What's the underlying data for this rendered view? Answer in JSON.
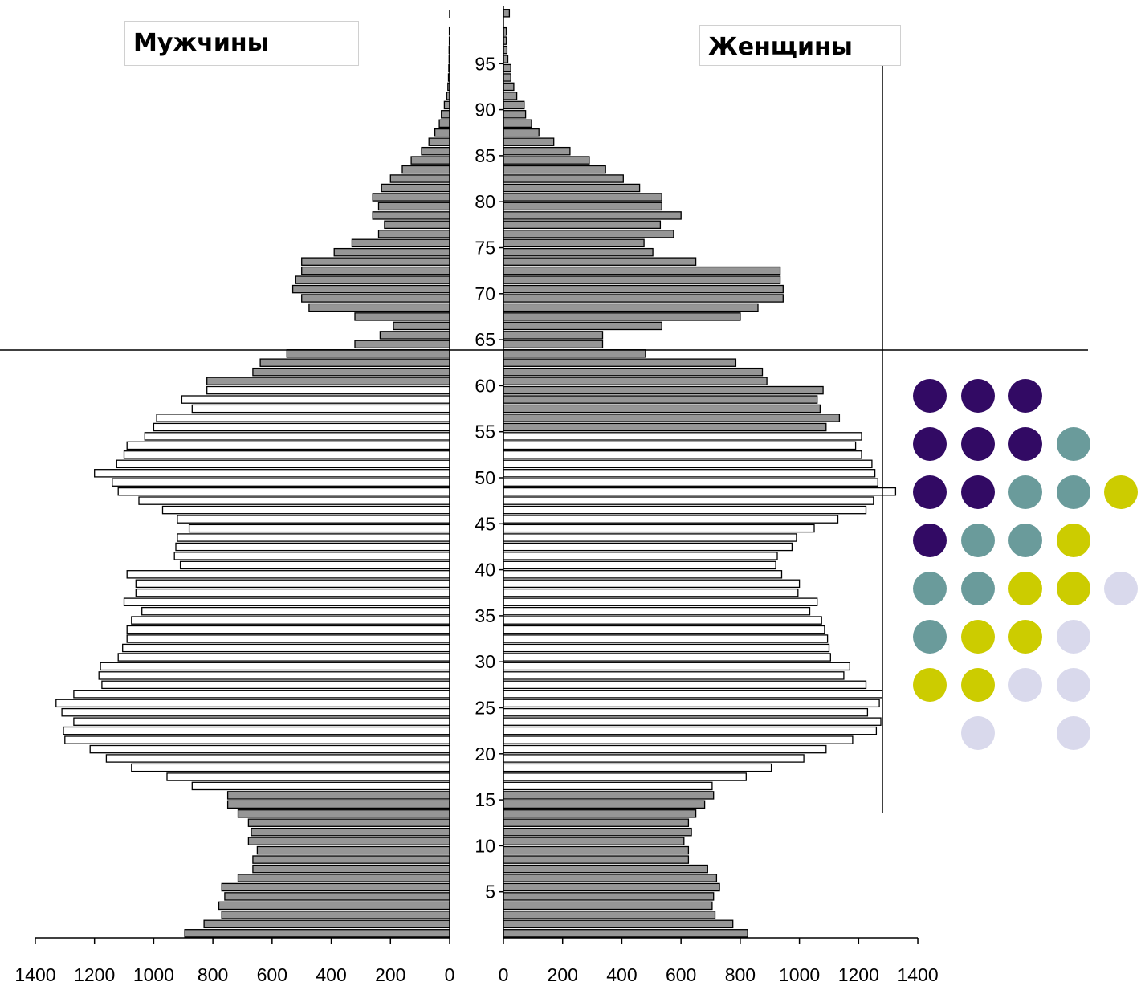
{
  "legend": {
    "male_label": "Мужчины",
    "female_label": "Женщины"
  },
  "colors": {
    "working_age_fill": "#ffffff",
    "non_working_fill": "#969696",
    "outline": "#000000",
    "dots": {
      "purple": "#320a64",
      "teal": "#6a9b9b",
      "yellow": "#cccc00",
      "lavender": "#d9d9ec"
    }
  },
  "chart_data": {
    "type": "bar",
    "orientation": "horizontal",
    "subtype": "population-pyramid",
    "y_tick_labels": [
      "5",
      "10",
      "15",
      "20",
      "25",
      "30",
      "35",
      "40",
      "45",
      "50",
      "55",
      "60",
      "65",
      "70",
      "75",
      "80",
      "85",
      "90",
      "95"
    ],
    "x_tick_labels": [
      "1400",
      "1200",
      "1000",
      "800",
      "600",
      "400",
      "200",
      "0"
    ],
    "x_tick_labels_right": [
      "0",
      "200",
      "400",
      "600",
      "800",
      "1000",
      "1200",
      "1400"
    ],
    "xlim": [
      0,
      1400
    ],
    "ages": [
      0,
      1,
      2,
      3,
      4,
      5,
      6,
      7,
      8,
      9,
      10,
      11,
      12,
      13,
      14,
      15,
      16,
      17,
      18,
      19,
      20,
      21,
      22,
      23,
      24,
      25,
      26,
      27,
      28,
      29,
      30,
      31,
      32,
      33,
      34,
      35,
      36,
      37,
      38,
      39,
      40,
      41,
      42,
      43,
      44,
      45,
      46,
      47,
      48,
      49,
      50,
      51,
      52,
      53,
      54,
      55,
      56,
      57,
      58,
      59,
      60,
      61,
      62,
      63,
      64,
      65,
      66,
      67,
      68,
      69,
      70,
      71,
      72,
      73,
      74,
      75,
      76,
      77,
      78,
      79,
      80,
      81,
      82,
      83,
      84,
      85,
      86,
      87,
      88,
      89,
      90,
      91,
      92,
      93,
      94,
      95,
      96,
      97,
      98,
      99,
      100
    ],
    "series": [
      {
        "name": "Мужчины",
        "values": [
          895,
          830,
          770,
          780,
          760,
          770,
          715,
          665,
          665,
          650,
          680,
          670,
          680,
          715,
          750,
          750,
          870,
          955,
          1075,
          1160,
          1215,
          1300,
          1305,
          1270,
          1310,
          1330,
          1270,
          1175,
          1185,
          1180,
          1120,
          1105,
          1090,
          1090,
          1075,
          1040,
          1100,
          1060,
          1060,
          1090,
          910,
          930,
          925,
          920,
          880,
          920,
          970,
          1050,
          1120,
          1140,
          1200,
          1125,
          1100,
          1090,
          1030,
          1000,
          990,
          870,
          905,
          820,
          820,
          665,
          640,
          550,
          320,
          235,
          190,
          320,
          475,
          500,
          530,
          520,
          500,
          500,
          390,
          330,
          240,
          220,
          260,
          240,
          260,
          230,
          200,
          160,
          130,
          95,
          70,
          50,
          35,
          28,
          18,
          10,
          6,
          4,
          3,
          2,
          2,
          1,
          1,
          0,
          0
        ],
        "working_age": {
          "from_age": 16,
          "to_age": 59,
          "fill": "working_age_fill"
        }
      },
      {
        "name": "Женщины",
        "values": [
          825,
          775,
          715,
          705,
          710,
          730,
          720,
          690,
          625,
          625,
          610,
          635,
          625,
          650,
          680,
          710,
          705,
          820,
          905,
          1015,
          1090,
          1180,
          1260,
          1275,
          1230,
          1270,
          1280,
          1225,
          1150,
          1170,
          1105,
          1100,
          1095,
          1085,
          1075,
          1035,
          1060,
          995,
          1000,
          940,
          920,
          925,
          975,
          990,
          1050,
          1130,
          1225,
          1250,
          1325,
          1265,
          1255,
          1245,
          1210,
          1190,
          1210,
          1090,
          1135,
          1070,
          1060,
          1080,
          890,
          875,
          785,
          480,
          335,
          335,
          535,
          800,
          860,
          945,
          945,
          935,
          935,
          650,
          505,
          475,
          575,
          530,
          600,
          535,
          535,
          460,
          405,
          345,
          290,
          225,
          170,
          120,
          95,
          75,
          70,
          45,
          35,
          25,
          25,
          15,
          12,
          10,
          10,
          0,
          20
        ],
        "working_age": {
          "from_age": 16,
          "to_age": 54,
          "fill": "working_age_fill"
        }
      }
    ]
  }
}
